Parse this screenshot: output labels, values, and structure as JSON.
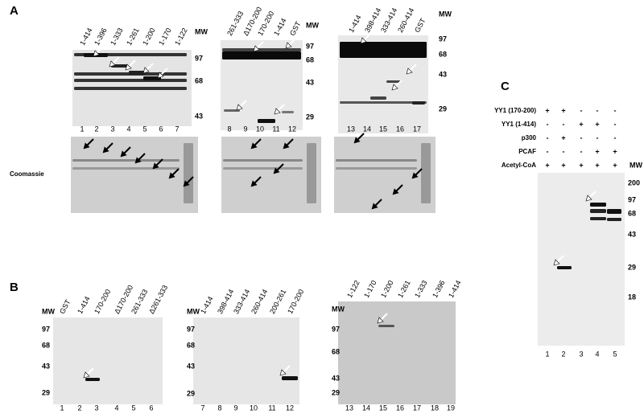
{
  "panel_a": {
    "label": "A",
    "coomassie_label": "Coomassie",
    "gels": [
      {
        "lanes": [
          "1-414",
          "1-396",
          "1-333",
          "1-261",
          "1-200",
          "1-170",
          "1-122"
        ],
        "mw_header": "MW",
        "mw": [
          "97",
          "68",
          "43"
        ],
        "lane_numbers": [
          "1",
          "2",
          "3",
          "4",
          "5",
          "6",
          "7"
        ]
      },
      {
        "lanes": [
          "261-333",
          "Δ170-200",
          "170-200",
          "1-414",
          "GST"
        ],
        "mw_header": "MW",
        "mw": [
          "97",
          "68",
          "43",
          "29"
        ],
        "lane_numbers": [
          "8",
          "9",
          "10",
          "11",
          "12"
        ]
      },
      {
        "lanes": [
          "1-414",
          "398-414",
          "333-414",
          "260-414",
          "GST"
        ],
        "mw_header": "MW",
        "mw": [
          "97",
          "68",
          "43",
          "29"
        ],
        "lane_numbers": [
          "13",
          "14",
          "15",
          "16",
          "17"
        ]
      }
    ]
  },
  "panel_b": {
    "label": "B",
    "gels": [
      {
        "lanes": [
          "GST",
          "1-414",
          "170-200",
          "Δ170-200",
          "261-333",
          "Δ261-333"
        ],
        "mw_header": "MW",
        "mw": [
          "97",
          "68",
          "43",
          "29"
        ],
        "lane_numbers": [
          "1",
          "2",
          "3",
          "4",
          "5",
          "6"
        ]
      },
      {
        "lanes": [
          "1-414",
          "398-414",
          "333-414",
          "260-414",
          "200-261",
          "170-200"
        ],
        "mw_header": "MW",
        "mw": [
          "97",
          "68",
          "43",
          "29"
        ],
        "lane_numbers": [
          "7",
          "8",
          "9",
          "10",
          "11",
          "12"
        ]
      },
      {
        "lanes": [
          "1-122",
          "1-170",
          "1-200",
          "1-261",
          "1-333",
          "1-396",
          "1-414"
        ],
        "mw_header": "MW",
        "mw": [
          "97",
          "68",
          "43",
          "29"
        ],
        "lane_numbers": [
          "13",
          "14",
          "15",
          "16",
          "17",
          "18",
          "19"
        ]
      }
    ]
  },
  "panel_c": {
    "label": "C",
    "conditions": [
      {
        "label": "YY1 (170-200)",
        "signs": [
          "+",
          "+",
          "-",
          "-",
          "-"
        ]
      },
      {
        "label": "YY1 (1-414)",
        "signs": [
          "-",
          "-",
          "+",
          "+",
          "-"
        ]
      },
      {
        "label": "p300",
        "signs": [
          "-",
          "+",
          "-",
          "-",
          "-"
        ]
      },
      {
        "label": "PCAF",
        "signs": [
          "-",
          "-",
          "-",
          "+",
          "+"
        ]
      },
      {
        "label": "Acetyl-CoA",
        "signs": [
          "+",
          "+",
          "+",
          "+",
          "+"
        ]
      }
    ],
    "mw_header": "MW",
    "mw": [
      "200",
      "97",
      "68",
      "43",
      "29",
      "18"
    ],
    "lane_numbers": [
      "1",
      "2",
      "3",
      "4",
      "5"
    ]
  }
}
